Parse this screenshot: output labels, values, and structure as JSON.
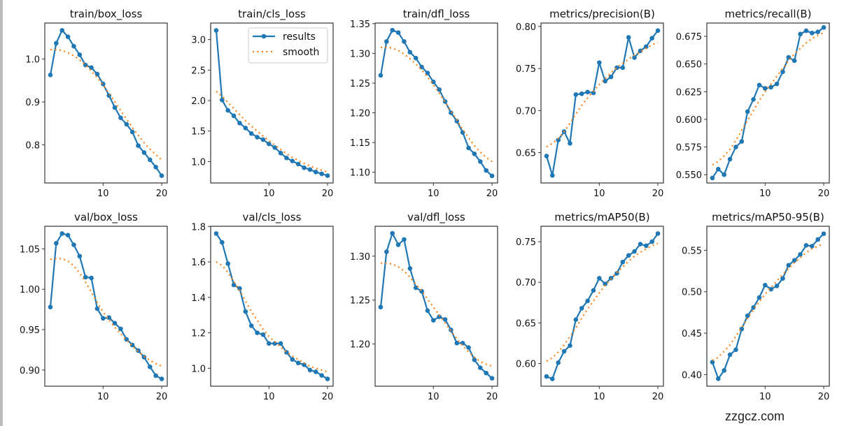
{
  "watermark": "zzgcz.com",
  "colors": {
    "results": "#1f77b4",
    "smooth": "#ff7f0e",
    "axes": "#333333"
  },
  "legend": {
    "placement": "upper-right",
    "entries": [
      "results",
      "smooth"
    ]
  },
  "chart_data": [
    {
      "type": "line",
      "title": "train/box_loss",
      "xlim": [
        0.05,
        20.95
      ],
      "xticks": [
        10,
        20
      ],
      "ylim": [
        0.711,
        1.084
      ],
      "yticks": [
        0.8,
        0.9,
        1.0
      ],
      "ytick_labels": [
        "0.8",
        "0.9",
        "1.0"
      ],
      "series": [
        {
          "name": "results",
          "values": [
            0.963,
            1.037,
            1.067,
            1.052,
            1.03,
            1.01,
            0.986,
            0.98,
            0.965,
            0.942,
            0.915,
            0.887,
            0.863,
            0.848,
            0.83,
            0.798,
            0.782,
            0.765,
            0.748,
            0.728
          ]
        },
        {
          "name": "smooth",
          "values": [
            1.022,
            1.022,
            1.02,
            1.015,
            1.008,
            0.998,
            0.986,
            0.972,
            0.957,
            0.94,
            0.92,
            0.9,
            0.88,
            0.86,
            0.84,
            0.822,
            0.805,
            0.79,
            0.777,
            0.765
          ]
        }
      ]
    },
    {
      "type": "line",
      "title": "train/cls_loss",
      "xlim": [
        0.05,
        20.95
      ],
      "xticks": [
        10,
        20
      ],
      "ylim": [
        0.65,
        3.27
      ],
      "yticks": [
        1.0,
        1.5,
        2.0,
        2.5,
        3.0
      ],
      "ytick_labels": [
        "1.0",
        "1.5",
        "2.0",
        "2.5",
        "3.0"
      ],
      "legend": true,
      "series": [
        {
          "name": "results",
          "values": [
            3.15,
            2.01,
            1.84,
            1.75,
            1.63,
            1.55,
            1.46,
            1.4,
            1.36,
            1.29,
            1.23,
            1.14,
            1.06,
            1.01,
            0.96,
            0.9,
            0.87,
            0.83,
            0.8,
            0.77
          ]
        },
        {
          "name": "smooth",
          "values": [
            2.15,
            2.07,
            1.97,
            1.87,
            1.77,
            1.67,
            1.58,
            1.5,
            1.42,
            1.34,
            1.27,
            1.2,
            1.13,
            1.07,
            1.02,
            0.97,
            0.93,
            0.89,
            0.86,
            0.83
          ]
        }
      ]
    },
    {
      "type": "line",
      "title": "train/dfl_loss",
      "xlim": [
        0.05,
        20.95
      ],
      "xticks": [
        10,
        20
      ],
      "ylim": [
        1.082,
        1.351
      ],
      "yticks": [
        1.1,
        1.15,
        1.2,
        1.25,
        1.3,
        1.35
      ],
      "ytick_labels": [
        "1.10",
        "1.15",
        "1.20",
        "1.25",
        "1.30",
        "1.35"
      ],
      "series": [
        {
          "name": "results",
          "values": [
            1.263,
            1.32,
            1.339,
            1.335,
            1.32,
            1.302,
            1.292,
            1.277,
            1.267,
            1.252,
            1.239,
            1.219,
            1.2,
            1.186,
            1.167,
            1.141,
            1.131,
            1.118,
            1.103,
            1.094
          ]
        },
        {
          "name": "smooth",
          "values": [
            1.31,
            1.31,
            1.309,
            1.305,
            1.299,
            1.291,
            1.282,
            1.272,
            1.26,
            1.247,
            1.233,
            1.218,
            1.203,
            1.188,
            1.172,
            1.158,
            1.145,
            1.134,
            1.125,
            1.118
          ]
        }
      ]
    },
    {
      "type": "line",
      "title": "metrics/precision(B)",
      "xlim": [
        0.05,
        20.95
      ],
      "xticks": [
        10,
        20
      ],
      "ylim": [
        0.614,
        0.804
      ],
      "yticks": [
        0.65,
        0.7,
        0.75,
        0.8
      ],
      "ytick_labels": [
        "0.65",
        "0.70",
        "0.75",
        "0.80"
      ],
      "series": [
        {
          "name": "results",
          "values": [
            0.646,
            0.623,
            0.665,
            0.675,
            0.661,
            0.719,
            0.72,
            0.722,
            0.721,
            0.757,
            0.735,
            0.74,
            0.751,
            0.751,
            0.787,
            0.763,
            0.771,
            0.776,
            0.786,
            0.795
          ]
        },
        {
          "name": "smooth",
          "values": [
            0.657,
            0.661,
            0.667,
            0.675,
            0.685,
            0.696,
            0.706,
            0.715,
            0.723,
            0.731,
            0.738,
            0.745,
            0.751,
            0.756,
            0.761,
            0.766,
            0.77,
            0.774,
            0.778,
            0.781
          ]
        }
      ]
    },
    {
      "type": "line",
      "title": "metrics/recall(B)",
      "xlim": [
        0.05,
        20.95
      ],
      "xticks": [
        10,
        20
      ],
      "ylim": [
        0.5425,
        0.687
      ],
      "yticks": [
        0.55,
        0.575,
        0.6,
        0.625,
        0.65,
        0.675
      ],
      "ytick_labels": [
        "0.550",
        "0.575",
        "0.600",
        "0.625",
        "0.650",
        "0.675"
      ],
      "series": [
        {
          "name": "results",
          "values": [
            0.547,
            0.555,
            0.55,
            0.564,
            0.575,
            0.58,
            0.607,
            0.618,
            0.631,
            0.628,
            0.629,
            0.632,
            0.643,
            0.656,
            0.653,
            0.677,
            0.68,
            0.678,
            0.679,
            0.683
          ]
        },
        {
          "name": "smooth",
          "values": [
            0.559,
            0.562,
            0.567,
            0.573,
            0.581,
            0.59,
            0.599,
            0.608,
            0.617,
            0.625,
            0.632,
            0.639,
            0.646,
            0.653,
            0.659,
            0.664,
            0.669,
            0.673,
            0.676,
            0.678
          ]
        }
      ]
    },
    {
      "type": "line",
      "title": "val/box_loss",
      "xlim": [
        0.05,
        20.95
      ],
      "xticks": [
        10,
        20
      ],
      "ylim": [
        0.88,
        1.078
      ],
      "yticks": [
        0.9,
        0.95,
        1.0,
        1.05
      ],
      "ytick_labels": [
        "0.90",
        "0.95",
        "1.00",
        "1.05"
      ],
      "series": [
        {
          "name": "results",
          "values": [
            0.978,
            1.057,
            1.069,
            1.067,
            1.055,
            1.041,
            1.015,
            1.014,
            0.976,
            0.964,
            0.965,
            0.958,
            0.951,
            0.938,
            0.931,
            0.924,
            0.916,
            0.904,
            0.893,
            0.889
          ]
        },
        {
          "name": "smooth",
          "values": [
            1.037,
            1.038,
            1.038,
            1.035,
            1.029,
            1.02,
            1.009,
            0.996,
            0.984,
            0.972,
            0.962,
            0.953,
            0.945,
            0.937,
            0.93,
            0.923,
            0.917,
            0.912,
            0.908,
            0.905
          ]
        }
      ]
    },
    {
      "type": "line",
      "title": "val/cls_loss",
      "xlim": [
        0.05,
        20.95
      ],
      "xticks": [
        10,
        20
      ],
      "ylim": [
        0.899,
        1.801
      ],
      "yticks": [
        1.0,
        1.2,
        1.4,
        1.6,
        1.8
      ],
      "ytick_labels": [
        "1.0",
        "1.2",
        "1.4",
        "1.6",
        "1.8"
      ],
      "series": [
        {
          "name": "results",
          "values": [
            1.76,
            1.71,
            1.59,
            1.47,
            1.45,
            1.32,
            1.24,
            1.2,
            1.19,
            1.14,
            1.14,
            1.14,
            1.09,
            1.05,
            1.03,
            1.02,
            0.99,
            0.98,
            0.96,
            0.94
          ]
        },
        {
          "name": "smooth",
          "values": [
            1.6,
            1.58,
            1.54,
            1.49,
            1.44,
            1.38,
            1.32,
            1.27,
            1.22,
            1.18,
            1.15,
            1.12,
            1.09,
            1.07,
            1.05,
            1.03,
            1.01,
            1.0,
            0.99,
            0.98
          ]
        }
      ]
    },
    {
      "type": "line",
      "title": "val/dfl_loss",
      "xlim": [
        0.05,
        20.95
      ],
      "xticks": [
        10,
        20
      ],
      "ylim": [
        1.152,
        1.334
      ],
      "yticks": [
        1.2,
        1.25,
        1.3
      ],
      "ytick_labels": [
        "1.20",
        "1.25",
        "1.30"
      ],
      "series": [
        {
          "name": "results",
          "values": [
            1.242,
            1.305,
            1.326,
            1.313,
            1.319,
            1.286,
            1.264,
            1.26,
            1.238,
            1.227,
            1.231,
            1.228,
            1.216,
            1.201,
            1.201,
            1.196,
            1.182,
            1.173,
            1.167,
            1.161
          ]
        },
        {
          "name": "smooth",
          "values": [
            1.292,
            1.292,
            1.291,
            1.288,
            1.283,
            1.276,
            1.268,
            1.26,
            1.251,
            1.242,
            1.233,
            1.224,
            1.215,
            1.206,
            1.198,
            1.191,
            1.185,
            1.18,
            1.177,
            1.175
          ]
        }
      ]
    },
    {
      "type": "line",
      "title": "metrics/mAP50(B)",
      "xlim": [
        0.05,
        20.95
      ],
      "xticks": [
        10,
        20
      ],
      "ylim": [
        0.572,
        0.769
      ],
      "yticks": [
        0.6,
        0.65,
        0.7,
        0.75
      ],
      "ytick_labels": [
        "0.60",
        "0.65",
        "0.70",
        "0.75"
      ],
      "series": [
        {
          "name": "results",
          "values": [
            0.584,
            0.581,
            0.601,
            0.615,
            0.622,
            0.654,
            0.668,
            0.677,
            0.69,
            0.705,
            0.698,
            0.705,
            0.711,
            0.725,
            0.733,
            0.738,
            0.747,
            0.745,
            0.75,
            0.76
          ]
        },
        {
          "name": "smooth",
          "values": [
            0.603,
            0.607,
            0.614,
            0.623,
            0.633,
            0.644,
            0.656,
            0.667,
            0.677,
            0.687,
            0.696,
            0.704,
            0.712,
            0.719,
            0.726,
            0.732,
            0.737,
            0.741,
            0.745,
            0.748
          ]
        }
      ]
    },
    {
      "type": "line",
      "title": "metrics/mAP50-95(B)",
      "xlim": [
        0.05,
        20.95
      ],
      "xticks": [
        10,
        20
      ],
      "ylim": [
        0.386,
        0.579
      ],
      "yticks": [
        0.4,
        0.45,
        0.5,
        0.55
      ],
      "ytick_labels": [
        "0.40",
        "0.45",
        "0.50",
        "0.55"
      ],
      "series": [
        {
          "name": "results",
          "values": [
            0.415,
            0.395,
            0.405,
            0.424,
            0.43,
            0.455,
            0.471,
            0.481,
            0.493,
            0.508,
            0.503,
            0.507,
            0.516,
            0.532,
            0.538,
            0.545,
            0.556,
            0.555,
            0.563,
            0.57
          ]
        },
        {
          "name": "smooth",
          "values": [
            0.417,
            0.421,
            0.428,
            0.436,
            0.446,
            0.457,
            0.468,
            0.478,
            0.488,
            0.497,
            0.505,
            0.513,
            0.521,
            0.528,
            0.535,
            0.541,
            0.547,
            0.552,
            0.555,
            0.558
          ]
        }
      ]
    }
  ]
}
